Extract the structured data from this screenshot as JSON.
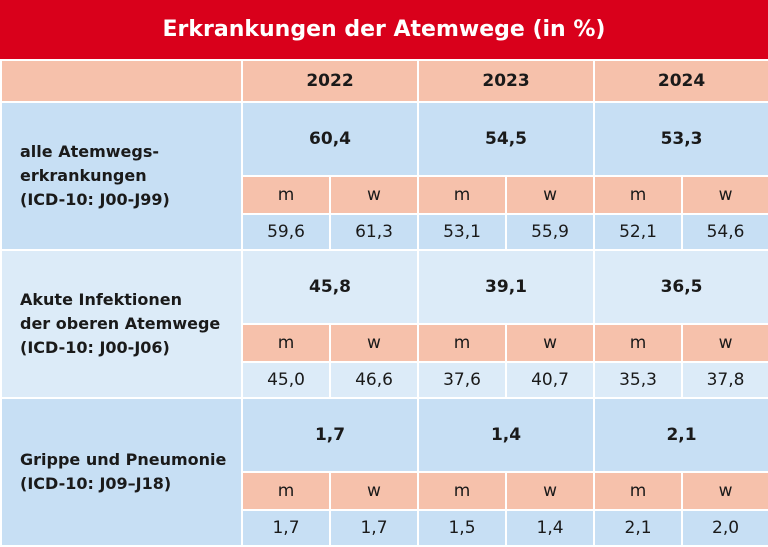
{
  "title": "Erkrankungen der Atemwege (in %)",
  "years": [
    "2022",
    "2023",
    "2024"
  ],
  "sex_labels": {
    "m": "m",
    "w": "w"
  },
  "groups": [
    {
      "label_lines": [
        "alle Atemwegs-",
        "erkrankungen",
        "(ICD-10: J00-J99)"
      ],
      "totals": [
        "60,4",
        "54,5",
        "53,3"
      ],
      "values": [
        "59,6",
        "61,3",
        "53,1",
        "55,9",
        "52,1",
        "54,6"
      ]
    },
    {
      "label_lines": [
        "Akute Infektionen",
        "der oberen Atemwege",
        "(ICD-10: J00-J06)"
      ],
      "totals": [
        "45,8",
        "39,1",
        "36,5"
      ],
      "values": [
        "45,0",
        "46,6",
        "37,6",
        "40,7",
        "35,3",
        "37,8"
      ]
    },
    {
      "label_lines": [
        "Grippe und Pneumonie",
        "(ICD-10: J09–J18)"
      ],
      "totals": [
        "1,7",
        "1,4",
        "2,1"
      ],
      "values": [
        "1,7",
        "1,7",
        "1,5",
        "1,4",
        "2,1",
        "2,0"
      ]
    }
  ]
}
